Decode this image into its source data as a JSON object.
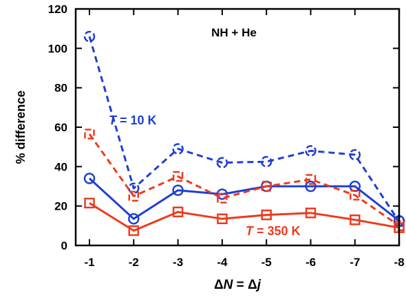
{
  "chart_data": {
    "type": "line",
    "title": "NH + He",
    "xlabel": {
      "delta": "Δ",
      "N": "N",
      "eq": " = Δ",
      "j": "j"
    },
    "ylabel": "% difference",
    "x": [
      -1,
      -2,
      -3,
      -4,
      -5,
      -6,
      -7,
      -8
    ],
    "xticklabels": [
      "-1",
      "-2",
      "-3",
      "-4",
      "-5",
      "-6",
      "-7",
      "-8"
    ],
    "ylim": [
      0,
      120
    ],
    "yticks": [
      0,
      20,
      40,
      60,
      80,
      100,
      120
    ],
    "grid": false,
    "series": [
      {
        "color": "#1f3fd1",
        "marker": "circle",
        "dash": false,
        "values": [
          34,
          13.5,
          28,
          26,
          30,
          30,
          30,
          12.5
        ]
      },
      {
        "color": "#1f3fd1",
        "marker": "circle",
        "dash": true,
        "values": [
          106,
          29,
          49,
          42,
          42.5,
          48,
          46,
          12
        ]
      },
      {
        "color": "#ee3a1e",
        "marker": "square",
        "dash": false,
        "values": [
          21.5,
          7.5,
          17,
          13.5,
          15.5,
          16.5,
          13,
          9
        ]
      },
      {
        "color": "#ee3a1e",
        "marker": "square",
        "dash": true,
        "values": [
          56.5,
          25,
          35,
          24,
          30,
          33.5,
          25.5,
          10
        ]
      }
    ],
    "annotations": [
      {
        "italic": "T",
        "text": " = 10 K",
        "color": "#1f3fd1"
      },
      {
        "italic": "T",
        "text": " = 350 K",
        "color": "#ee3a1e"
      }
    ]
  }
}
